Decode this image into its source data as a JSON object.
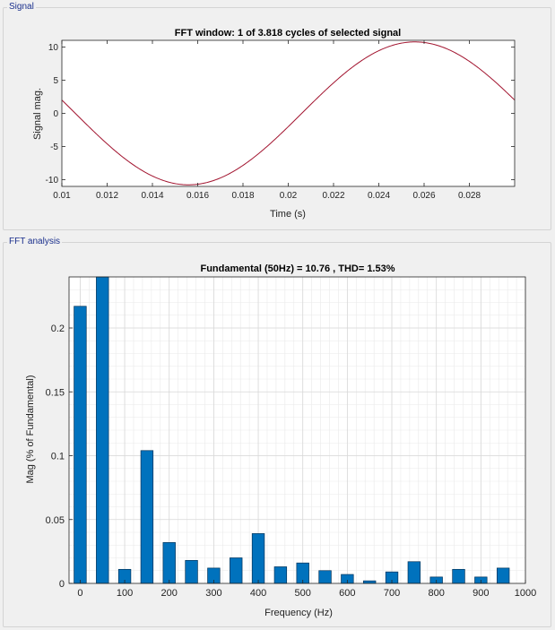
{
  "panels": {
    "signal_label": "Signal",
    "fft_label": "FFT analysis"
  },
  "colors": {
    "background": "#f0f0f0",
    "panel_border": "#d4d4d4",
    "panel_label": "#1a2f8c",
    "signal_line": "#a2142f",
    "bar_fill": "#0072bd",
    "bar_edge": "#00335a",
    "grid_minor": "#e9e9e9",
    "grid_major": "#d8d8d8"
  },
  "chart_data": [
    {
      "type": "line",
      "title": "FFT window: 1 of 3.818 cycles of selected signal",
      "xlabel": "Time (s)",
      "ylabel": "Signal mag.",
      "xlim": [
        0.01,
        0.03
      ],
      "ylim": [
        -11,
        11
      ],
      "x_ticks": [
        0.01,
        0.012,
        0.014,
        0.016,
        0.018,
        0.02,
        0.022,
        0.024,
        0.026,
        0.028
      ],
      "x_tick_labels": [
        "0.01",
        "0.012",
        "0.014",
        "0.016",
        "0.018",
        "0.02",
        "0.022",
        "0.024",
        "0.026",
        "0.028"
      ],
      "y_ticks": [
        -10,
        -5,
        0,
        5,
        10
      ],
      "y_tick_labels": [
        "-10",
        "-5",
        "0",
        "5",
        "10"
      ],
      "grid": false,
      "series": [
        {
          "amplitude": 10.76,
          "frequency_hz": 50,
          "x": [
            0.01,
            0.011,
            0.012,
            0.013,
            0.014,
            0.015,
            0.0155,
            0.016,
            0.017,
            0.018,
            0.019,
            0.02,
            0.021,
            0.022,
            0.023,
            0.024,
            0.025,
            0.0255,
            0.026,
            0.027,
            0.028,
            0.029,
            0.03
          ],
          "y": [
            2.0,
            -1.3,
            -4.5,
            -7.3,
            -9.4,
            -10.6,
            -10.76,
            -10.7,
            -9.8,
            -8.0,
            -5.4,
            -2.4,
            0.8,
            3.9,
            6.7,
            9.0,
            10.5,
            10.76,
            10.7,
            10.0,
            8.2,
            5.5,
            2.0
          ]
        }
      ]
    },
    {
      "type": "bar",
      "title": "Fundamental (50Hz) = 10.76 , THD= 1.53%",
      "xlabel": "Frequency (Hz)",
      "ylabel": "Mag (% of Fundamental)",
      "xlim": [
        -25,
        1000
      ],
      "ylim": [
        0,
        0.24
      ],
      "x_ticks": [
        0,
        100,
        200,
        300,
        400,
        500,
        600,
        700,
        800,
        900,
        1000
      ],
      "x_tick_labels": [
        "0",
        "100",
        "200",
        "300",
        "400",
        "500",
        "600",
        "700",
        "800",
        "900",
        "1000"
      ],
      "y_ticks": [
        0,
        0.05,
        0.1,
        0.15,
        0.2
      ],
      "y_tick_labels": [
        "0",
        "0.05",
        "0.1",
        "0.15",
        "0.2"
      ],
      "grid": true,
      "x": [
        0,
        50,
        100,
        150,
        200,
        250,
        300,
        350,
        400,
        450,
        500,
        550,
        600,
        650,
        700,
        750,
        800,
        850,
        900,
        950
      ],
      "values": [
        0.217,
        0.24,
        0.011,
        0.104,
        0.032,
        0.018,
        0.012,
        0.02,
        0.039,
        0.013,
        0.016,
        0.01,
        0.007,
        0.002,
        0.009,
        0.017,
        0.005,
        0.011,
        0.005,
        0.012
      ]
    }
  ]
}
